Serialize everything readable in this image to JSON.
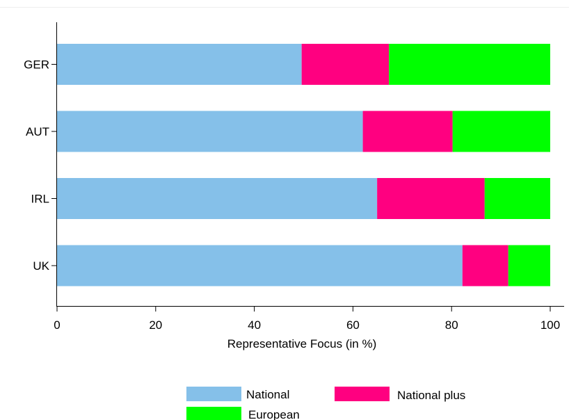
{
  "chart_data": {
    "type": "bar",
    "orientation": "horizontal",
    "stacked": true,
    "title": "",
    "xlabel": "Representative Focus (in %)",
    "ylabel": "",
    "xlim": [
      0,
      100
    ],
    "x_ticks": [
      0,
      20,
      40,
      60,
      80,
      100
    ],
    "grid": false,
    "legend_position": "bottom",
    "categories": [
      "GER",
      "AUT",
      "IRL",
      "UK"
    ],
    "series": [
      {
        "name": "National",
        "color": "#85c0e9",
        "values": [
          49.6,
          62.0,
          64.9,
          82.2
        ]
      },
      {
        "name": "National plus",
        "color": "#ff0080",
        "values": [
          17.7,
          18.2,
          21.8,
          9.3
        ]
      },
      {
        "name": "European",
        "color": "#00ff00",
        "values": [
          32.7,
          19.8,
          13.3,
          8.5
        ]
      }
    ]
  }
}
